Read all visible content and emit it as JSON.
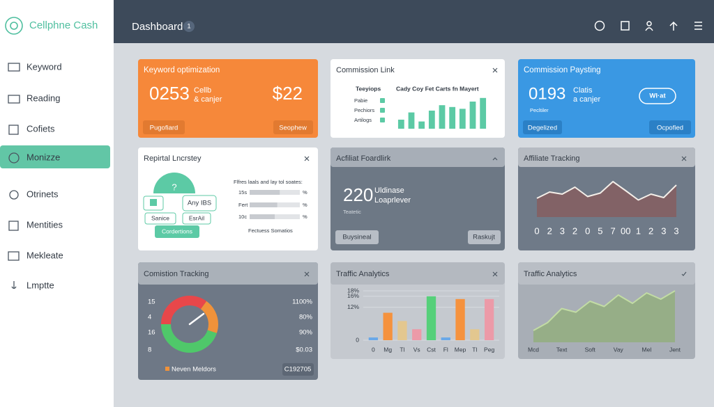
{
  "sidebar": {
    "logo": "Cellphne Cash",
    "items": [
      "Keyword",
      "Reading",
      "Cofiets",
      "Monizze",
      "Otrinets",
      "Mentities",
      "Mekleate",
      "Lmptte"
    ]
  },
  "header": {
    "title": "Dashboard",
    "badge": "1"
  },
  "keyword_card": {
    "title": "Keyword optimization",
    "number": "0253",
    "caption": [
      "Cellb",
      "& canjer"
    ],
    "amount": "$22",
    "buttons": [
      "Pugofiard",
      "Seophew"
    ]
  },
  "commission_link": {
    "title": "Commission Link",
    "list_title": "Teeyiops",
    "list": [
      "Pabie",
      "Pechiors",
      "Artilogs"
    ],
    "chart": {
      "type": "bar",
      "title": "Cady Coy Fet Carts fn Mayert",
      "values": [
        25,
        45,
        20,
        50,
        65,
        60,
        55,
        75,
        85
      ],
      "color": "#5ccaa5",
      "ylim": [
        0,
        100
      ]
    }
  },
  "commission_pay": {
    "title": "Commission Paysting",
    "number": "0193",
    "caption": [
      "Clatis",
      "a canjer"
    ],
    "sub": "Pecltiler",
    "badge": "WI·at",
    "buttons": [
      "Degelized",
      "Ocpofied"
    ]
  },
  "referral": {
    "title": "Repirtal Lncrstey",
    "bubble": "?",
    "tags": [
      "Any IBS",
      "Sanice",
      "EsrAil"
    ],
    "button": "Cordertions",
    "progress": {
      "title": "Flfres laals and lay tol soates:",
      "rows": [
        "15s",
        "Fert",
        "10c"
      ],
      "values": [
        60,
        55,
        50
      ],
      "suffixes": [
        "%",
        "%",
        "%"
      ],
      "xlim": [
        0,
        100
      ],
      "footer": "Fectuess Somatios"
    }
  },
  "affiliate_board": {
    "title": "Acfiliat Foardlirk",
    "number": "220",
    "caption": [
      "Uldinase",
      "Loaprlever"
    ],
    "sub": "Teatetic",
    "buttons": [
      "Buysineal",
      "Raskujt"
    ]
  },
  "affiliate_tracking": {
    "title": "Affiliate Tracking",
    "chart": {
      "type": "line",
      "categories": [
        "0",
        "2",
        "3",
        "2",
        "0",
        "5",
        "7",
        "00",
        "1",
        "2",
        "3",
        "3"
      ],
      "values": [
        40,
        58,
        52,
        72,
        45,
        55,
        88,
        62,
        35,
        52,
        42,
        78
      ],
      "color": "#f4efe9",
      "area_color": "#8a5858",
      "ylim": [
        0,
        100
      ]
    }
  },
  "commission_tracking": {
    "title": "Comistion Tracking",
    "left_labels": [
      "15",
      "4",
      "16",
      "8"
    ],
    "right_labels": [
      "1100%",
      "80%",
      "90%",
      "$0.03"
    ],
    "chart": {
      "type": "donut",
      "values": [
        35,
        20,
        45
      ],
      "colors": [
        "#e8474a",
        "#f0923a",
        "#4fc86a"
      ]
    },
    "legend": "Neven Meldors",
    "code": "C192705"
  },
  "traffic_bars": {
    "title": "Traffic Analytics",
    "chart": {
      "type": "bar",
      "categories": [
        "0",
        "Mg",
        "Tl",
        "Vs",
        "Cst",
        "Fl",
        "Mep",
        "Tl",
        "Peg"
      ],
      "values": [
        1,
        10,
        7,
        4,
        16,
        1,
        15,
        4,
        15
      ],
      "colors": [
        "#6aa8e8",
        "#f5923e",
        "#e3c78f",
        "#ec9aa8",
        "#56d07a",
        "#6aa8e8",
        "#f5923e",
        "#e3c78f",
        "#ec9aa8"
      ],
      "ylim": [
        0,
        18
      ],
      "yticks": [
        0,
        {
          "value": 12,
          "label": "12%"
        },
        {
          "value": 16,
          "label": "16%"
        },
        {
          "value": 18,
          "label": "18%"
        }
      ],
      "grid": true
    }
  },
  "traffic_area": {
    "title": "Traffic Analytics",
    "chart": {
      "type": "area",
      "categories": [
        "Mcd",
        null,
        "Text",
        null,
        "Soft",
        null,
        "Vay",
        null,
        "Mel",
        null,
        "Jent"
      ],
      "values": [
        20,
        35,
        62,
        55,
        76,
        66,
        88,
        72,
        92,
        80,
        96
      ],
      "color": "#c2dca4",
      "area_color": "#8fae74",
      "ylim": [
        0,
        100
      ]
    }
  }
}
